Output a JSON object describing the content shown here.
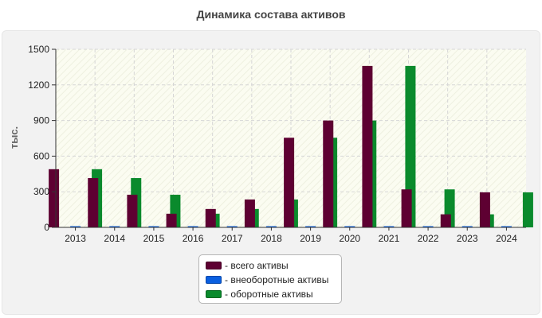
{
  "chart_data": {
    "type": "bar",
    "title": "Динамика состава активов",
    "ylabel": "тыс.",
    "xlabel": "",
    "ylim": [
      0,
      1500
    ],
    "yticks": [
      "0",
      "300",
      "600",
      "900",
      "1200",
      "1500"
    ],
    "categories": [
      "2013",
      "2014",
      "2015",
      "2016",
      "2017",
      "2018",
      "2019",
      "2020",
      "2021",
      "2022",
      "2023",
      "2024"
    ],
    "series": [
      {
        "name": "- всего активы",
        "color": "#5e0032",
        "values": [
          490,
          415,
          275,
          115,
          155,
          235,
          755,
          900,
          1360,
          320,
          110,
          295
        ]
      },
      {
        "name": "- внеоборотные активы",
        "color": "#0a5fe0",
        "values": [
          2,
          2,
          2,
          2,
          2,
          2,
          2,
          2,
          2,
          2,
          2,
          2
        ]
      },
      {
        "name": "- оборотные активы",
        "color": "#0a8a2c",
        "values": [
          490,
          415,
          275,
          115,
          155,
          235,
          755,
          900,
          1360,
          320,
          110,
          295
        ]
      }
    ],
    "legend_position": "bottom-center",
    "grid": true
  }
}
